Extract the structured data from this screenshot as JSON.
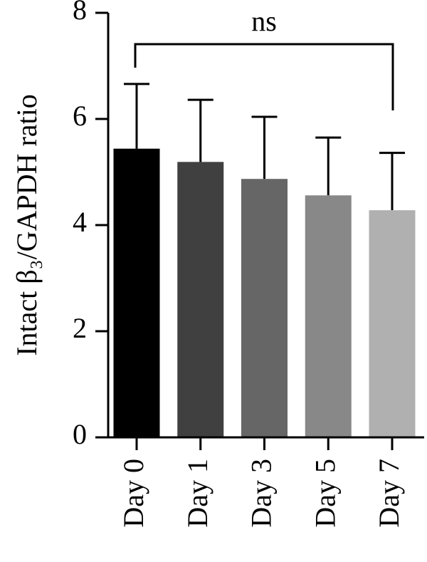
{
  "chart_data": {
    "type": "bar",
    "ylabel": "Intact β₃/GAPDH ratio",
    "annotation": "ns",
    "categories": [
      "Day 0",
      "Day 1",
      "Day 3",
      "Day 5",
      "Day 7"
    ],
    "values": [
      5.44,
      5.19,
      4.87,
      4.56,
      4.28
    ],
    "errors": [
      1.22,
      1.17,
      1.17,
      1.09,
      1.08
    ],
    "colors": [
      "#000000",
      "#404040",
      "#666666",
      "#888888",
      "#b0b0b0"
    ],
    "ylim": [
      0,
      8
    ],
    "yticks": [
      0,
      2,
      4,
      6,
      8
    ]
  }
}
